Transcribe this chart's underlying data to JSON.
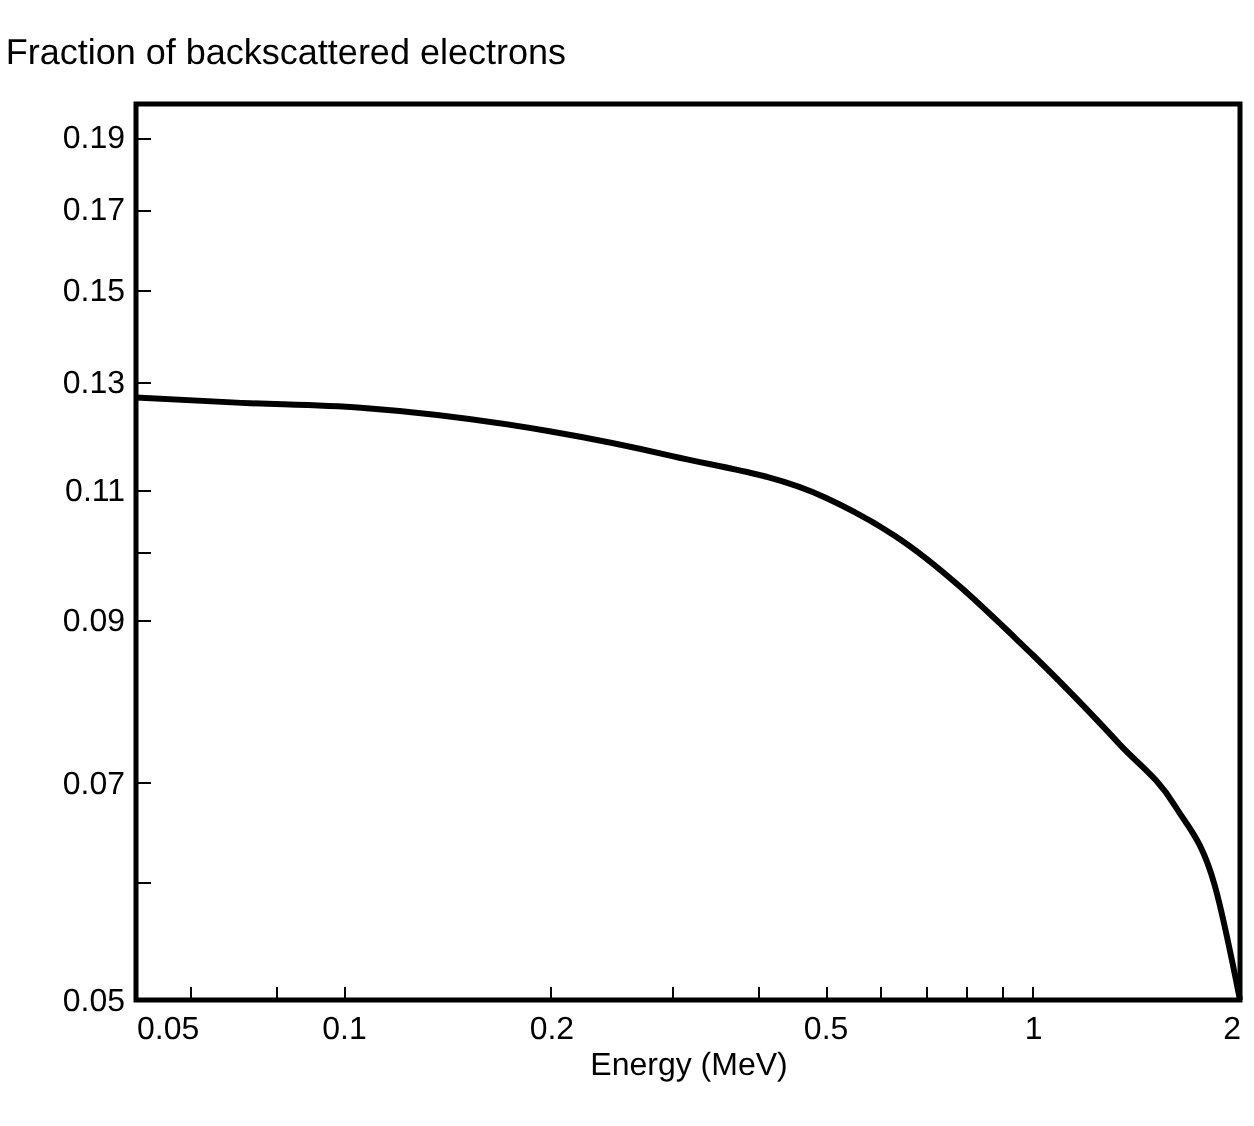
{
  "chart_data": {
    "type": "line",
    "title": "Fraction of backscattered electrons",
    "xlabel": "Energy (MeV)",
    "x": [
      0.05,
      0.07,
      0.106,
      0.2,
      0.3,
      0.5,
      0.63,
      1,
      1.34,
      1.61,
      1.84,
      2
    ],
    "series": [
      {
        "color": "#000000",
        "values": [
          0.127,
          0.126,
          0.125,
          0.1205,
          0.116,
          0.1088,
          0.1026,
          0.0853,
          0.0742,
          0.0675,
          0.0596,
          0.05
        ]
      }
    ],
    "log": "xy",
    "xlim": [
      0.05,
      2
    ],
    "ylim": [
      0.05,
      0.2
    ],
    "xticks": [
      0.05,
      {
        "value": 0.06,
        "label": null
      },
      {
        "value": 0.08,
        "label": null
      },
      0.1,
      0.2,
      {
        "value": 0.3,
        "label": null
      },
      {
        "value": 0.4,
        "label": null
      },
      0.5,
      {
        "value": 0.6,
        "label": null
      },
      {
        "value": 0.7,
        "label": null
      },
      {
        "value": 0.8,
        "label": null
      },
      {
        "value": 0.9,
        "label": null
      },
      1,
      2
    ],
    "yticks": [
      0.05,
      {
        "value": 0.06,
        "label": null
      },
      0.07,
      0.09,
      {
        "value": 0.1,
        "label": null
      },
      0.11,
      0.13,
      0.15,
      0.17,
      0.19
    ],
    "grid": false,
    "legend": false,
    "marker": "none",
    "line_style": "solid"
  }
}
